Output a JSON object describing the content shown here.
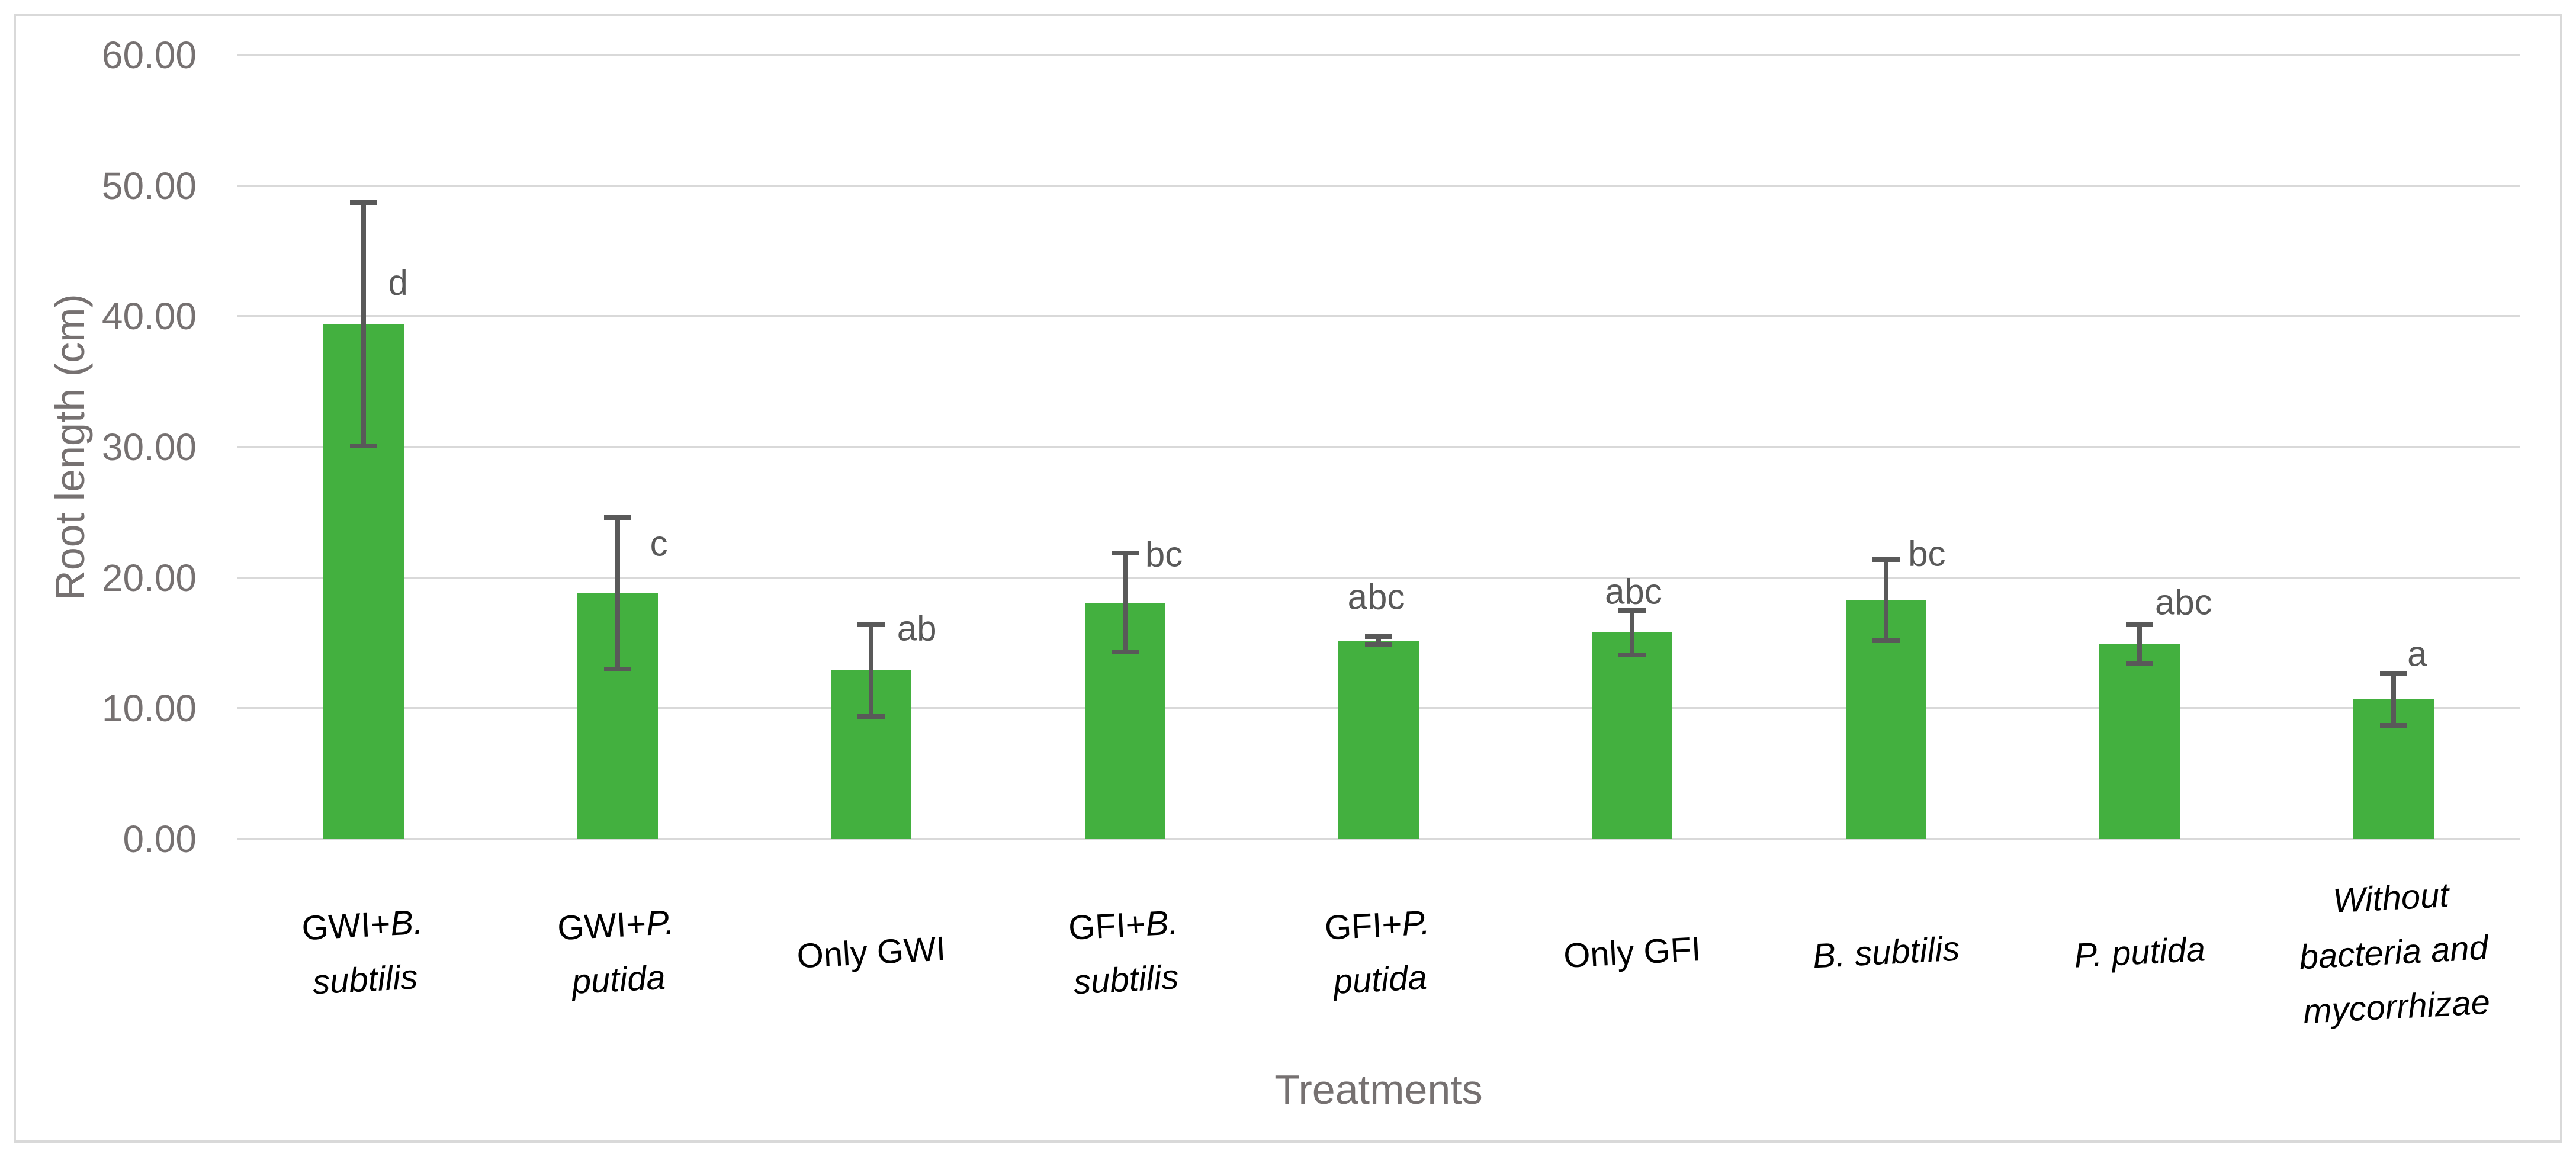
{
  "chart_data": {
    "type": "bar",
    "title": "",
    "xlabel": "Treatments",
    "ylabel": "Root length (cm)",
    "ylim": [
      0,
      60
    ],
    "ytick_labels": [
      "0.00",
      "10.00",
      "20.00",
      "30.00",
      "40.00",
      "50.00",
      "60.00"
    ],
    "grid": true,
    "legend": "none",
    "bar_color": "#43b03f",
    "error_bar_color": "#595959",
    "gridline_color": "#d9d9d9",
    "tick_text_color": "#767171",
    "category_text_color": "#000000",
    "categories": [
      "GWI+B. subtilis",
      "GWI+P. putida",
      "Only GWI",
      "GFI+B. subtilis",
      "GFI+P. putida",
      "Only GFI",
      "B. subtilis",
      "P. putida",
      "Without bacteria and mycorrhizae"
    ],
    "category_display_lines": [
      [
        [
          {
            "t": "GWI+",
            "i": false
          },
          {
            "t": "B.",
            "i": true
          }
        ],
        [
          {
            "t": "subtilis",
            "i": true
          }
        ]
      ],
      [
        [
          {
            "t": "GWI+",
            "i": false
          },
          {
            "t": "P.",
            "i": true
          }
        ],
        [
          {
            "t": "putida",
            "i": true
          }
        ]
      ],
      [
        [
          {
            "t": "Only GWI",
            "i": false
          }
        ]
      ],
      [
        [
          {
            "t": "GFI+",
            "i": false
          },
          {
            "t": "B.",
            "i": true
          }
        ],
        [
          {
            "t": "subtilis",
            "i": true
          }
        ]
      ],
      [
        [
          {
            "t": "GFI+",
            "i": false
          },
          {
            "t": "P.",
            "i": true
          }
        ],
        [
          {
            "t": "putida",
            "i": true
          }
        ]
      ],
      [
        [
          {
            "t": "Only GFI",
            "i": false
          }
        ]
      ],
      [
        [
          {
            "t": "B. subtilis",
            "i": true
          }
        ]
      ],
      [
        [
          {
            "t": "P. putida",
            "i": true
          }
        ]
      ],
      [
        [
          {
            "t": "Without",
            "i": true
          }
        ],
        [
          {
            "t": "bacteria and",
            "i": true
          }
        ],
        [
          {
            "t": "mycorrhizae",
            "i": true
          }
        ]
      ]
    ],
    "series": [
      {
        "name": "Root length (cm)",
        "values": [
          39.4,
          18.8,
          12.9,
          18.1,
          15.2,
          15.8,
          18.3,
          14.9,
          10.7
        ],
        "errors": [
          9.3,
          5.8,
          3.5,
          3.8,
          0.3,
          1.7,
          3.1,
          1.5,
          2.0
        ]
      }
    ],
    "significance_letters": [
      "d",
      "c",
      "ab",
      "bc",
      "abc",
      "abc",
      "bc",
      "abc",
      "a"
    ]
  }
}
